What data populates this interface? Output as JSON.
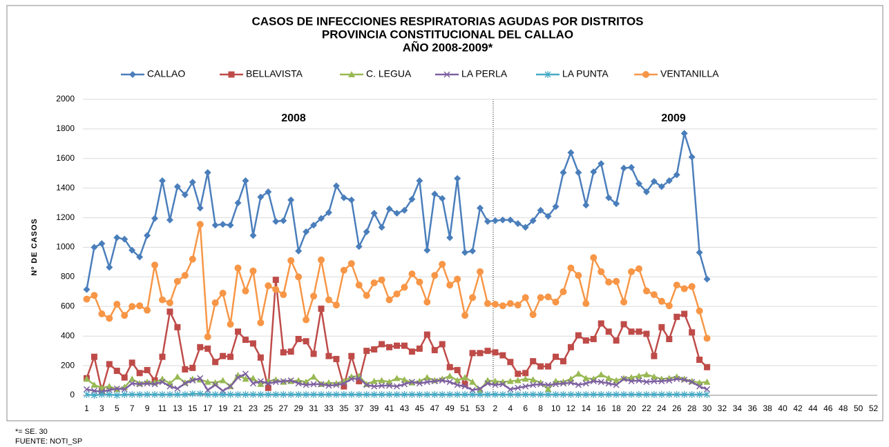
{
  "chart_data": {
    "type": "line",
    "title": [
      "CASOS DE INFECCIONES RESPIRATORIAS AGUDAS POR DISTRITOS",
      "PROVINCIA CONSTITUCIONAL DEL CALLAO",
      "AÑO 2008-2009*"
    ],
    "y_label": "Nº DE CASOS",
    "annotations": [
      "2008",
      "2009"
    ],
    "notes": [
      "*= SE. 30",
      "FUENTE: NOTI_SP"
    ],
    "ylim": [
      0,
      2000
    ],
    "yticks": [
      0,
      200,
      400,
      600,
      800,
      1000,
      1200,
      1400,
      1600,
      1800,
      2000
    ],
    "grid": true,
    "legend": "top",
    "categories": [
      "1",
      null,
      "3",
      null,
      "5",
      null,
      "7",
      null,
      "9",
      null,
      "11",
      null,
      "13",
      null,
      "15",
      null,
      "17",
      null,
      "19",
      null,
      "21",
      null,
      "23",
      null,
      "25",
      null,
      "27",
      null,
      "29",
      null,
      "31",
      null,
      "33",
      null,
      "35",
      null,
      "37",
      null,
      "39",
      null,
      "41",
      null,
      "43",
      null,
      "45",
      null,
      "47",
      null,
      "49",
      null,
      "51",
      null,
      "53",
      null,
      "2",
      null,
      "4",
      null,
      "6",
      null,
      "8",
      null,
      "10",
      null,
      "12",
      null,
      "14",
      null,
      "16",
      null,
      "18",
      null,
      "20",
      null,
      "22",
      null,
      "24",
      null,
      "26",
      null,
      "28",
      null,
      "30",
      null,
      "32",
      null,
      "34",
      null,
      "36",
      null,
      "38",
      null,
      "40",
      null,
      "42",
      null,
      "44",
      null,
      "46",
      null,
      "48",
      null,
      "50",
      null,
      "52"
    ],
    "series": [
      {
        "name": "CALLAO",
        "color": "#4a7ebb",
        "marker": "diamond",
        "values": [
          715,
          1000,
          1025,
          865,
          1065,
          1055,
          980,
          935,
          1080,
          1195,
          1450,
          1185,
          1410,
          1355,
          1440,
          1265,
          1505,
          1150,
          1155,
          1150,
          1300,
          1450,
          1080,
          1340,
          1375,
          1175,
          1180,
          1320,
          975,
          1105,
          1150,
          1195,
          1235,
          1415,
          1335,
          1320,
          1005,
          1105,
          1230,
          1135,
          1260,
          1230,
          1250,
          1325,
          1450,
          980,
          1360,
          1330,
          1065,
          1465,
          965,
          975,
          1265,
          1175,
          1180,
          1185,
          1185,
          1160,
          1135,
          1180,
          1250,
          1210,
          1275,
          1505,
          1640,
          1505,
          1285,
          1510,
          1565,
          1335,
          1295,
          1535,
          1540,
          1430,
          1375,
          1445,
          1410,
          1450,
          1490,
          1770,
          1610,
          965,
          785,
          null,
          null,
          null,
          null,
          null,
          null,
          null,
          null,
          null,
          null,
          null,
          null,
          null,
          null,
          null,
          null,
          null,
          null,
          null,
          null,
          null,
          null
        ]
      },
      {
        "name": "BELLAVISTA",
        "color": "#be4b48",
        "marker": "square",
        "values": [
          115,
          260,
          30,
          210,
          165,
          120,
          220,
          150,
          170,
          100,
          260,
          565,
          460,
          175,
          185,
          325,
          315,
          225,
          265,
          260,
          430,
          375,
          350,
          255,
          50,
          780,
          290,
          295,
          380,
          365,
          280,
          585,
          265,
          245,
          60,
          265,
          95,
          300,
          310,
          345,
          325,
          335,
          335,
          295,
          315,
          410,
          305,
          345,
          190,
          170,
          75,
          285,
          285,
          300,
          290,
          270,
          225,
          145,
          150,
          230,
          195,
          195,
          260,
          230,
          325,
          405,
          370,
          380,
          485,
          430,
          370,
          480,
          430,
          430,
          415,
          265,
          460,
          380,
          530,
          550,
          425,
          240,
          190,
          null,
          null,
          null,
          null,
          null,
          null,
          null,
          null,
          null,
          null,
          null,
          null,
          null,
          null,
          null,
          null,
          null,
          null,
          null,
          null,
          null,
          null
        ]
      },
      {
        "name": "C. LEGUA",
        "color": "#98b954",
        "marker": "triangle",
        "values": [
          110,
          70,
          50,
          60,
          40,
          55,
          110,
          80,
          90,
          85,
          110,
          80,
          125,
          85,
          110,
          105,
          90,
          85,
          100,
          60,
          135,
          110,
          115,
          75,
          95,
          105,
          90,
          95,
          100,
          90,
          125,
          75,
          85,
          80,
          95,
          125,
          130,
          75,
          95,
          100,
          90,
          115,
          105,
          85,
          95,
          120,
          100,
          110,
          130,
          100,
          120,
          90,
          35,
          100,
          95,
          90,
          95,
          100,
          110,
          105,
          85,
          40,
          95,
          90,
          110,
          145,
          115,
          110,
          140,
          115,
          100,
          115,
          120,
          130,
          140,
          125,
          110,
          115,
          125,
          110,
          95,
          85,
          90,
          null,
          null,
          null,
          null,
          null,
          null,
          null,
          null,
          null,
          null,
          null,
          null,
          null,
          null,
          null,
          null,
          null,
          null,
          null,
          null,
          null,
          null
        ]
      },
      {
        "name": "LA PERLA",
        "color": "#7d60a0",
        "marker": "x",
        "values": [
          40,
          30,
          25,
          35,
          45,
          40,
          80,
          75,
          80,
          75,
          90,
          60,
          45,
          80,
          100,
          115,
          35,
          70,
          30,
          60,
          120,
          145,
          80,
          95,
          80,
          90,
          95,
          100,
          80,
          70,
          75,
          75,
          65,
          70,
          80,
          110,
          115,
          70,
          60,
          65,
          65,
          60,
          75,
          90,
          80,
          90,
          95,
          100,
          90,
          70,
          60,
          35,
          45,
          80,
          70,
          75,
          40,
          50,
          60,
          70,
          75,
          70,
          75,
          80,
          85,
          70,
          80,
          95,
          90,
          80,
          70,
          110,
          95,
          100,
          90,
          95,
          95,
          100,
          110,
          105,
          90,
          60,
          40,
          null,
          null,
          null,
          null,
          null,
          null,
          null,
          null,
          null,
          null,
          null,
          null,
          null,
          null,
          null,
          null,
          null,
          null,
          null,
          null,
          null,
          null
        ]
      },
      {
        "name": "LA PUNTA",
        "color": "#46aac5",
        "marker": "star",
        "values": [
          5,
          0,
          5,
          5,
          0,
          5,
          5,
          5,
          5,
          5,
          5,
          5,
          5,
          5,
          10,
          10,
          5,
          5,
          5,
          5,
          5,
          5,
          5,
          5,
          5,
          5,
          5,
          5,
          5,
          5,
          5,
          5,
          5,
          5,
          5,
          5,
          5,
          5,
          5,
          5,
          5,
          5,
          5,
          5,
          5,
          5,
          5,
          5,
          5,
          5,
          5,
          5,
          5,
          5,
          5,
          5,
          5,
          5,
          5,
          5,
          5,
          5,
          5,
          5,
          5,
          5,
          5,
          5,
          5,
          5,
          5,
          5,
          5,
          5,
          5,
          5,
          5,
          5,
          5,
          5,
          5,
          5,
          5,
          null,
          null,
          null,
          null,
          null,
          null,
          null,
          null,
          null,
          null,
          null,
          null,
          null,
          null,
          null,
          null,
          null,
          null,
          null,
          null,
          null,
          null
        ]
      },
      {
        "name": "VENTANILLA",
        "color": "#f79646",
        "marker": "circle",
        "values": [
          650,
          675,
          550,
          520,
          615,
          540,
          600,
          605,
          575,
          880,
          645,
          625,
          770,
          810,
          920,
          1155,
          395,
          625,
          690,
          480,
          860,
          705,
          840,
          490,
          740,
          715,
          680,
          910,
          800,
          510,
          670,
          915,
          645,
          610,
          845,
          890,
          745,
          675,
          760,
          780,
          645,
          685,
          730,
          820,
          765,
          630,
          810,
          885,
          745,
          785,
          540,
          660,
          835,
          620,
          615,
          605,
          620,
          610,
          660,
          545,
          660,
          665,
          630,
          700,
          860,
          810,
          620,
          930,
          835,
          765,
          770,
          630,
          835,
          855,
          705,
          680,
          635,
          605,
          745,
          720,
          735,
          570,
          385,
          null,
          null,
          null,
          null,
          null,
          null,
          null,
          null,
          null,
          null,
          null,
          null,
          null,
          null,
          null,
          null,
          null,
          null,
          null,
          null,
          null,
          null
        ]
      }
    ]
  }
}
